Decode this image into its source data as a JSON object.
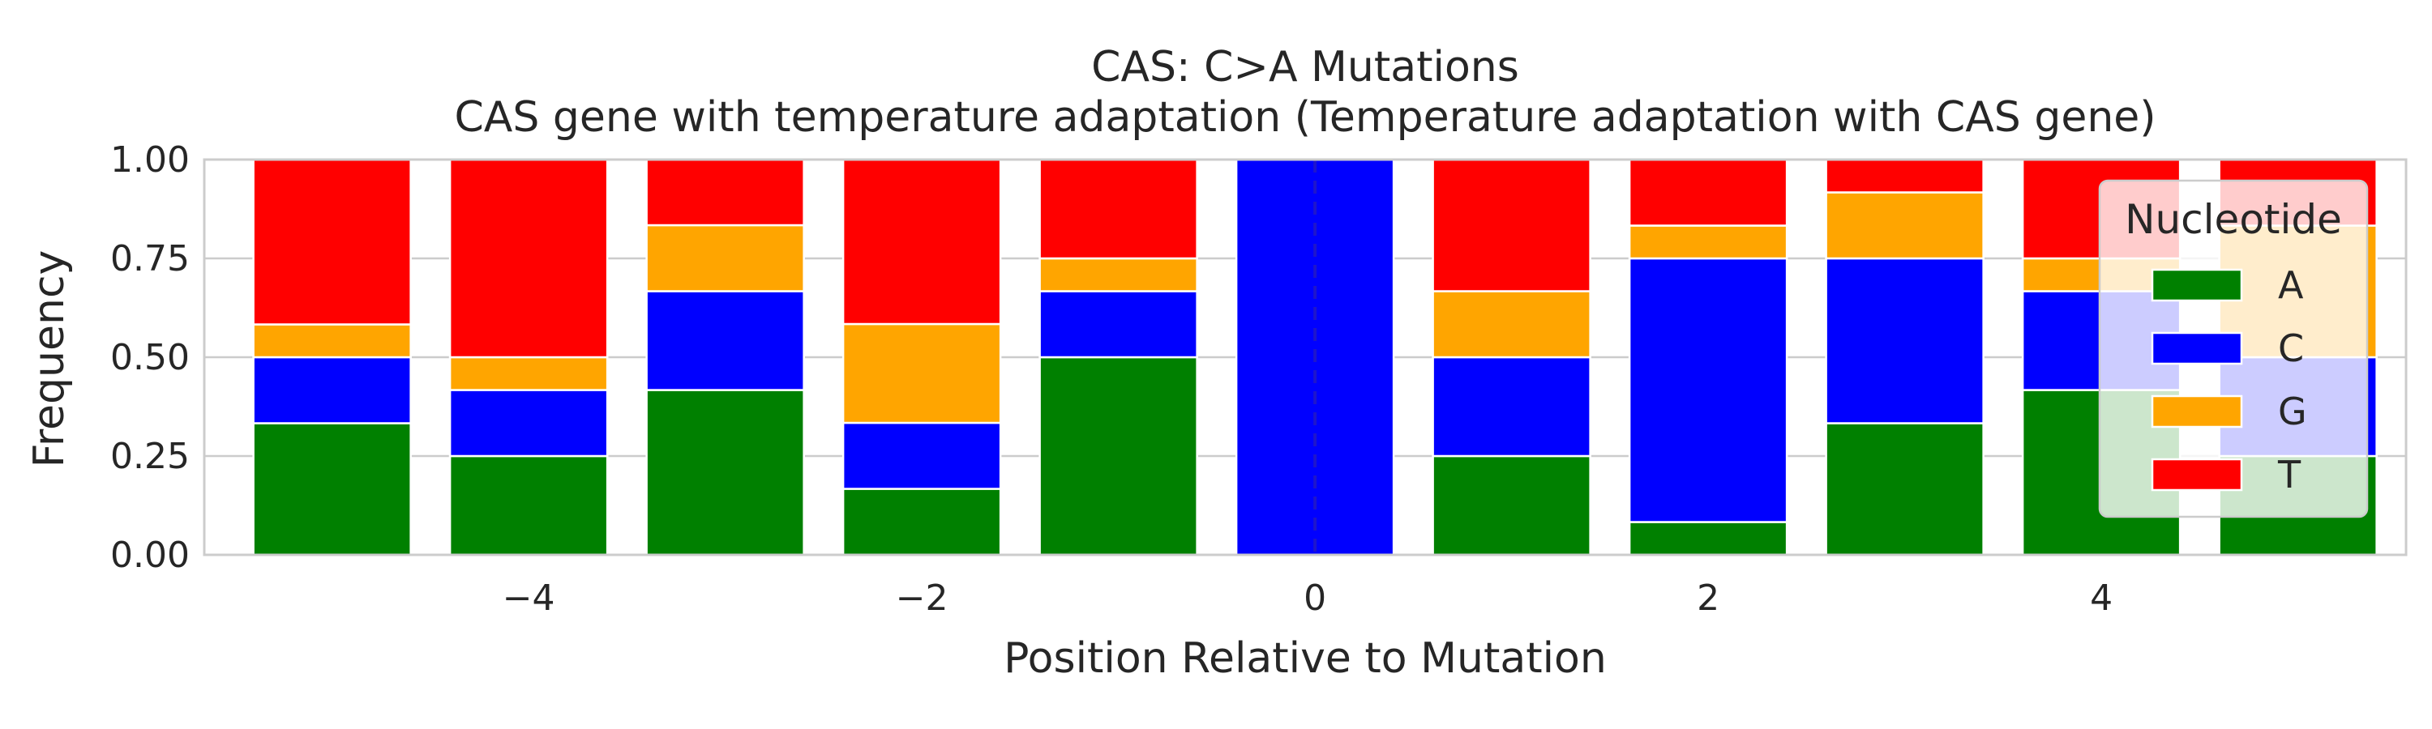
{
  "chart_data": {
    "type": "bar",
    "stacked": true,
    "title": "CAS: C>A Mutations",
    "subtitle": "CAS gene with temperature adaptation (Temperature adaptation with CAS gene)",
    "xlabel": "Position Relative to Mutation",
    "ylabel": "Frequency",
    "x": [
      -5,
      -4,
      -3,
      -2,
      -1,
      0,
      1,
      2,
      3,
      4,
      5
    ],
    "x_ticks": [
      -4,
      -2,
      0,
      2,
      4
    ],
    "x_tick_labels": [
      "−4",
      "−2",
      "0",
      "2",
      "4"
    ],
    "xlim": [
      -5.65,
      5.55
    ],
    "ylim": [
      0,
      1
    ],
    "y_ticks": [
      0,
      0.25,
      0.5,
      0.75,
      1
    ],
    "y_tick_labels": [
      "0.00",
      "0.25",
      "0.50",
      "0.75",
      "1.00"
    ],
    "grid": true,
    "mutation_line_x": 0,
    "legend": {
      "title": "Nucleotide",
      "placement": "right"
    },
    "series": [
      {
        "name": "A",
        "color": "#008000",
        "values": [
          0.333,
          0.25,
          0.417,
          0.167,
          0.5,
          0.0,
          0.25,
          0.083,
          0.333,
          0.417,
          0.25
        ]
      },
      {
        "name": "C",
        "color": "#0000ff",
        "values": [
          0.167,
          0.167,
          0.25,
          0.167,
          0.167,
          1.0,
          0.25,
          0.667,
          0.417,
          0.25,
          0.25
        ]
      },
      {
        "name": "G",
        "color": "#ffa500",
        "values": [
          0.083,
          0.083,
          0.167,
          0.25,
          0.083,
          0.0,
          0.167,
          0.083,
          0.167,
          0.083,
          0.333
        ]
      },
      {
        "name": "T",
        "color": "#ff0000",
        "values": [
          0.417,
          0.5,
          0.167,
          0.417,
          0.25,
          0.0,
          0.333,
          0.167,
          0.083,
          0.25,
          0.167
        ]
      }
    ]
  }
}
